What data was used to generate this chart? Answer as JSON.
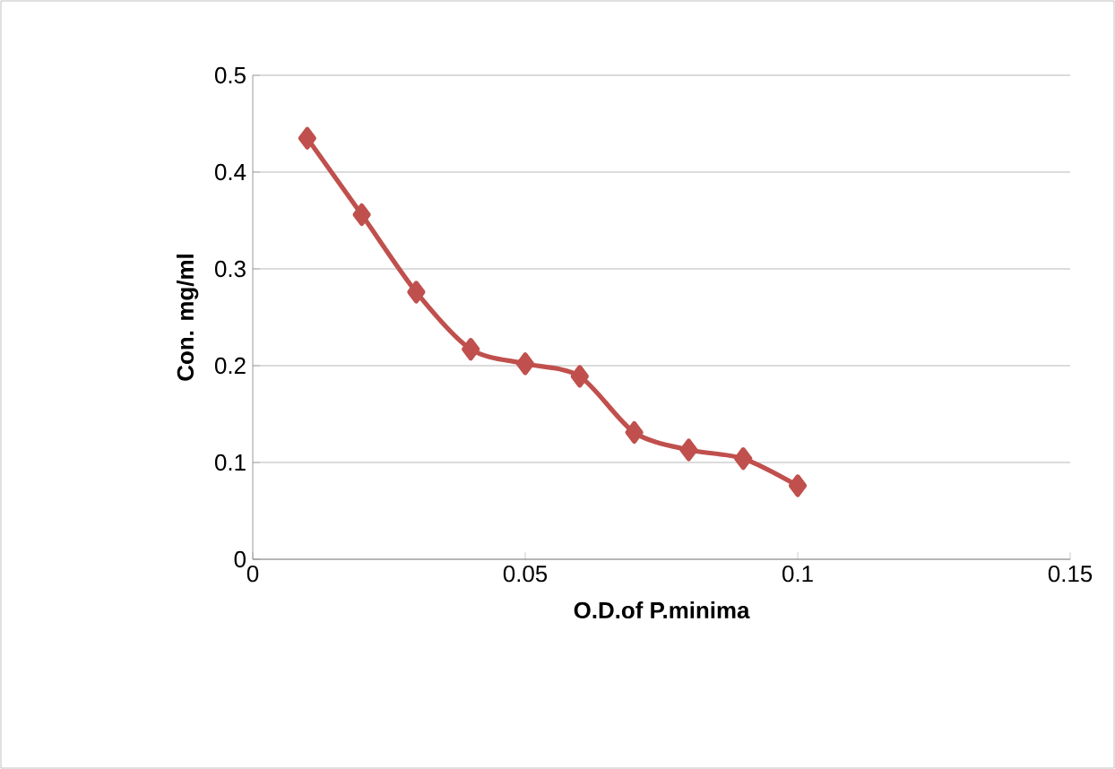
{
  "chart_data": {
    "type": "line",
    "xlabel": "O.D.of  P.minima",
    "ylabel": "Con. mg/ml",
    "x": [
      0.01,
      0.02,
      0.03,
      0.04,
      0.05,
      0.06,
      0.07,
      0.08,
      0.09,
      0.1
    ],
    "series": [
      {
        "color": "#c0504d",
        "values": [
          0.435,
          0.356,
          0.276,
          0.217,
          0.202,
          0.189,
          0.131,
          0.113,
          0.104,
          0.076
        ]
      }
    ],
    "xlim": [
      0,
      0.15
    ],
    "ylim": [
      0,
      0.5
    ],
    "xticks": [
      0,
      0.05,
      0.1,
      0.15
    ],
    "yticks": [
      0,
      0.1,
      0.2,
      0.3,
      0.4,
      0.5
    ],
    "grid": "y",
    "marker": "diamond",
    "line_style": "solid"
  }
}
